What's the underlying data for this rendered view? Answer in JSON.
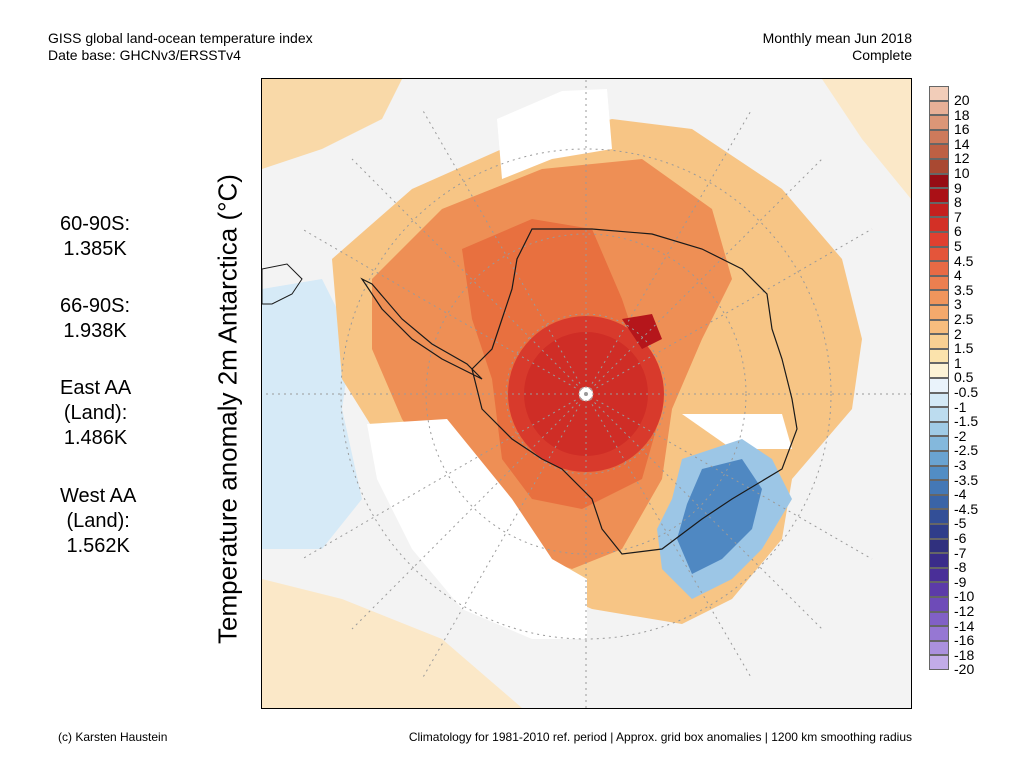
{
  "header": {
    "title_line1": "GISS global land-ocean temperature index",
    "title_line2": "Date base: GHCNv3/ERSSTv4",
    "period_line1": "Monthly mean Jun 2018",
    "period_line2": "Complete"
  },
  "stats": [
    {
      "lines": [
        "60-90S:",
        "1.385K"
      ]
    },
    {
      "lines": [
        "66-90S:",
        "1.938K"
      ]
    },
    {
      "lines": [
        "East AA",
        "(Land):",
        "1.486K"
      ]
    },
    {
      "lines": [
        "West AA",
        "(Land):",
        "1.562K"
      ]
    }
  ],
  "axis_label": "Temperature anomaly 2m Antarctica (°C)",
  "colorbar": {
    "labels": [
      "20",
      "18",
      "16",
      "14",
      "12",
      "10",
      "9",
      "8",
      "7",
      "6",
      "5",
      "4.5",
      "4",
      "3.5",
      "3",
      "2.5",
      "2",
      "1.5",
      "1",
      "0.5",
      "-0.5",
      "-1",
      "-1.5",
      "-2",
      "-2.5",
      "-3",
      "-3.5",
      "-4",
      "-4.5",
      "-5",
      "-6",
      "-7",
      "-8",
      "-9",
      "-10",
      "-12",
      "-14",
      "-16",
      "-18",
      "-20"
    ],
    "colors": [
      "#f2cdb9",
      "#e8b097",
      "#dc9677",
      "#cd7a5b",
      "#bd6044",
      "#a94932",
      "#960c14",
      "#aa1016",
      "#c4201e",
      "#d33026",
      "#e04030",
      "#e4553a",
      "#e86a45",
      "#ec7f50",
      "#f0955c",
      "#f4a96c",
      "#f7bd7e",
      "#f9d093",
      "#fbe3ac",
      "#fdf3d6",
      "#eaf3fb",
      "#d4e9f6",
      "#bcdcef",
      "#a0cbe6",
      "#84b8dc",
      "#6aa3d1",
      "#528dc4",
      "#4478b6",
      "#3a64a7",
      "#334f97",
      "#2f3d8a",
      "#30307e",
      "#3a2c8a",
      "#4a2f98",
      "#5c3ba8",
      "#6e4bb8",
      "#8160c6",
      "#9677d3",
      "#ab91de",
      "#c2ace8"
    ]
  },
  "footer": {
    "credit": "(c) Karsten Haustein",
    "note": "Climatology for 1981-2010 ref. period | Approx. grid box anomalies | 1200 km smoothing radius"
  },
  "map_regions": {
    "central_anomaly_color": "#d3342a",
    "warm_ring_color": "#ee8f55",
    "mild_ring_color": "#f7c585",
    "cool_patch_color": "#4f88c2",
    "light_cool_color": "#cfe5f5",
    "missing_color": "#ffffff",
    "ocean_background": "#f3f3f3"
  }
}
